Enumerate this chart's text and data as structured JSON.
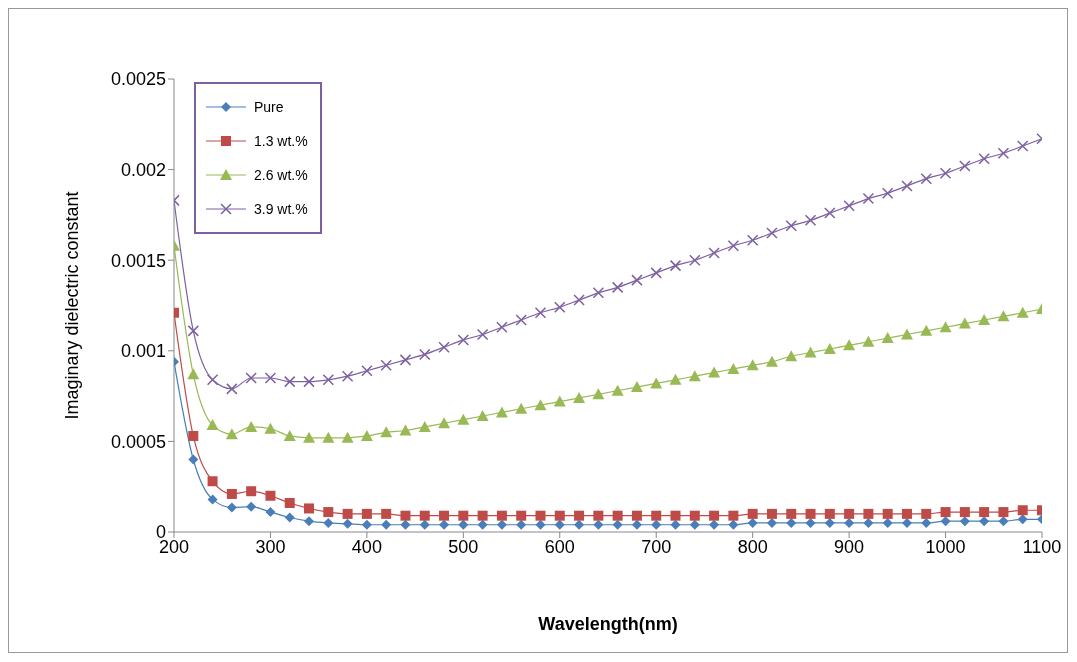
{
  "chart_data": {
    "type": "line",
    "xlabel": "Wavelength(nm)",
    "ylabel": "Imaginary dielectric constant",
    "x": [
      200,
      220,
      240,
      260,
      280,
      300,
      320,
      340,
      360,
      380,
      400,
      420,
      440,
      460,
      480,
      500,
      520,
      540,
      560,
      580,
      600,
      620,
      640,
      660,
      680,
      700,
      720,
      740,
      760,
      780,
      800,
      820,
      840,
      860,
      880,
      900,
      920,
      940,
      960,
      980,
      1000,
      1020,
      1040,
      1060,
      1080,
      1100
    ],
    "series": [
      {
        "name": "Pure",
        "color": "#4a7ebb",
        "marker": "diamond",
        "values": [
          0.00094,
          0.0004,
          0.00018,
          0.000135,
          0.00014,
          0.00011,
          8e-05,
          6e-05,
          5e-05,
          4.5e-05,
          4e-05,
          4e-05,
          4e-05,
          4e-05,
          4e-05,
          4e-05,
          4e-05,
          4e-05,
          4e-05,
          4e-05,
          4e-05,
          4e-05,
          4e-05,
          4e-05,
          4e-05,
          4e-05,
          4e-05,
          4e-05,
          4e-05,
          4e-05,
          5e-05,
          5e-05,
          5e-05,
          5e-05,
          5e-05,
          5e-05,
          5e-05,
          5e-05,
          5e-05,
          5e-05,
          6e-05,
          6e-05,
          6e-05,
          6e-05,
          7e-05,
          7e-05
        ]
      },
      {
        "name": "1.3 wt.%",
        "color": "#be4b48",
        "marker": "square",
        "values": [
          0.00121,
          0.00053,
          0.00028,
          0.00021,
          0.000225,
          0.0002,
          0.00016,
          0.00013,
          0.00011,
          0.0001,
          0.0001,
          0.0001,
          9e-05,
          9e-05,
          9e-05,
          9e-05,
          9e-05,
          9e-05,
          9e-05,
          9e-05,
          9e-05,
          9e-05,
          9e-05,
          9e-05,
          9e-05,
          9e-05,
          9e-05,
          9e-05,
          9e-05,
          9e-05,
          0.0001,
          0.0001,
          0.0001,
          0.0001,
          0.0001,
          0.0001,
          0.0001,
          0.0001,
          0.0001,
          0.0001,
          0.00011,
          0.00011,
          0.00011,
          0.00011,
          0.00012,
          0.00012
        ]
      },
      {
        "name": "2.6 wt.%",
        "color": "#98b954",
        "marker": "triangle",
        "values": [
          0.00158,
          0.00087,
          0.00059,
          0.00054,
          0.00058,
          0.00057,
          0.00053,
          0.00052,
          0.00052,
          0.00052,
          0.00053,
          0.00055,
          0.00056,
          0.00058,
          0.0006,
          0.00062,
          0.00064,
          0.00066,
          0.00068,
          0.0007,
          0.00072,
          0.00074,
          0.00076,
          0.00078,
          0.0008,
          0.00082,
          0.00084,
          0.00086,
          0.00088,
          0.0009,
          0.00092,
          0.00094,
          0.00097,
          0.00099,
          0.00101,
          0.00103,
          0.00105,
          0.00107,
          0.00109,
          0.00111,
          0.00113,
          0.00115,
          0.00117,
          0.00119,
          0.00121,
          0.00123
        ]
      },
      {
        "name": "3.9 wt.%",
        "color": "#7d60a0",
        "marker": "cross",
        "values": [
          0.00183,
          0.00111,
          0.00084,
          0.00079,
          0.00085,
          0.00085,
          0.00083,
          0.00083,
          0.00084,
          0.00086,
          0.00089,
          0.00092,
          0.00095,
          0.00098,
          0.00102,
          0.00106,
          0.00109,
          0.00113,
          0.00117,
          0.00121,
          0.00124,
          0.00128,
          0.00132,
          0.00135,
          0.00139,
          0.00143,
          0.00147,
          0.0015,
          0.00154,
          0.00158,
          0.00161,
          0.00165,
          0.00169,
          0.00172,
          0.00176,
          0.0018,
          0.00184,
          0.00187,
          0.00191,
          0.00195,
          0.00198,
          0.00202,
          0.00206,
          0.00209,
          0.00213,
          0.00217
        ]
      }
    ],
    "xlim": [
      200,
      1100
    ],
    "xticks": [
      200,
      300,
      400,
      500,
      600,
      700,
      800,
      900,
      1000,
      1100
    ],
    "ylim": [
      0,
      0.0025
    ],
    "yticks": [
      0,
      0.0005,
      0.001,
      0.0015,
      0.002,
      0.0025
    ],
    "grid": false,
    "legend": "top left",
    "line_style": "solid"
  }
}
